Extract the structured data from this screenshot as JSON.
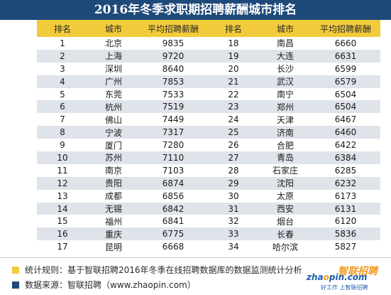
{
  "title": "2016年冬季求职期招聘薪酬城市排名",
  "columns": [
    "排名",
    "城市",
    "平均招聘薪酬",
    "排名",
    "城市",
    "平均招聘薪酬"
  ],
  "rows": [
    [
      [
        "1",
        "北京",
        "9835"
      ],
      [
        "18",
        "南昌",
        "6660"
      ]
    ],
    [
      [
        "2",
        "上海",
        "9720"
      ],
      [
        "19",
        "大连",
        "6631"
      ]
    ],
    [
      [
        "3",
        "深圳",
        "8640"
      ],
      [
        "20",
        "长沙",
        "6599"
      ]
    ],
    [
      [
        "4",
        "广州",
        "7853"
      ],
      [
        "21",
        "武汉",
        "6579"
      ]
    ],
    [
      [
        "5",
        "东莞",
        "7533"
      ],
      [
        "22",
        "南宁",
        "6504"
      ]
    ],
    [
      [
        "6",
        "杭州",
        "7519"
      ],
      [
        "23",
        "郑州",
        "6504"
      ]
    ],
    [
      [
        "7",
        "佛山",
        "7449"
      ],
      [
        "24",
        "天津",
        "6467"
      ]
    ],
    [
      [
        "8",
        "宁波",
        "7317"
      ],
      [
        "25",
        "济南",
        "6460"
      ]
    ],
    [
      [
        "9",
        "厦门",
        "7280"
      ],
      [
        "26",
        "合肥",
        "6422"
      ]
    ],
    [
      [
        "10",
        "苏州",
        "7110"
      ],
      [
        "27",
        "青岛",
        "6384"
      ]
    ],
    [
      [
        "11",
        "南京",
        "7103"
      ],
      [
        "28",
        "石家庄",
        "6285"
      ]
    ],
    [
      [
        "12",
        "贵阳",
        "6874"
      ],
      [
        "29",
        "沈阳",
        "6232"
      ]
    ],
    [
      [
        "13",
        "成都",
        "6856"
      ],
      [
        "30",
        "太原",
        "6173"
      ]
    ],
    [
      [
        "14",
        "无锡",
        "6842"
      ],
      [
        "31",
        "西安",
        "6131"
      ]
    ],
    [
      [
        "15",
        "福州",
        "6841"
      ],
      [
        "32",
        "烟台",
        "6120"
      ]
    ],
    [
      [
        "16",
        "重庆",
        "6775"
      ],
      [
        "33",
        "长春",
        "5836"
      ]
    ],
    [
      [
        "17",
        "昆明",
        "6668"
      ],
      [
        "34",
        "哈尔滨",
        "5827"
      ]
    ]
  ],
  "notes": [
    {
      "text": "统计规则：基于智联招聘2016年冬季在线招聘数据库的数据监测统计分析",
      "color": "#f2cb3a"
    },
    {
      "text": "数据来源：智联招聘（www.zhaopin.com）",
      "color": "#1e4a7a"
    }
  ],
  "logo": {
    "domain_pre": "zha",
    "domain_accent": "o",
    "domain_post": "pin.com",
    "brand": "智联招聘",
    "tagline": "好工作 上智联招聘"
  },
  "colors": {
    "title_bg": "#1e4a7a",
    "header_bg": "#f2cb3a",
    "stripe": "#dfe3ea"
  }
}
